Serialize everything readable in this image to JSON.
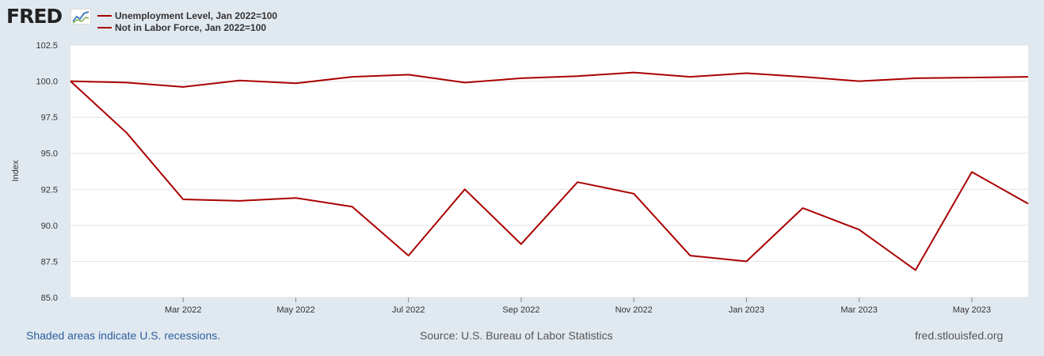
{
  "logo": {
    "text": "FRED",
    "icon": "line-chart-icon"
  },
  "legend": [
    {
      "label": "Unemployment Level, Jan 2022=100",
      "color": "#aa0000"
    },
    {
      "label": "Not in Labor Force, Jan 2022=100",
      "color": "#aa0000"
    }
  ],
  "chart_data": {
    "type": "line",
    "ylabel": "Index",
    "ylim": [
      85.0,
      102.5
    ],
    "yticks": [
      "85.0",
      "87.5",
      "90.0",
      "92.5",
      "95.0",
      "97.5",
      "100.0",
      "102.5"
    ],
    "x": [
      "Jan 2022",
      "Feb 2022",
      "Mar 2022",
      "Apr 2022",
      "May 2022",
      "Jun 2022",
      "Jul 2022",
      "Aug 2022",
      "Sep 2022",
      "Oct 2022",
      "Nov 2022",
      "Dec 2022",
      "Jan 2023",
      "Feb 2023",
      "Mar 2023",
      "Apr 2023",
      "May 2023",
      "Jun 2023"
    ],
    "xticks": [
      {
        "index": 2,
        "label": "Mar 2022"
      },
      {
        "index": 4,
        "label": "May 2022"
      },
      {
        "index": 6,
        "label": "Jul 2022"
      },
      {
        "index": 8,
        "label": "Sep 2022"
      },
      {
        "index": 10,
        "label": "Nov 2022"
      },
      {
        "index": 12,
        "label": "Jan 2023"
      },
      {
        "index": 14,
        "label": "Mar 2023"
      },
      {
        "index": 16,
        "label": "May 2023"
      }
    ],
    "series": [
      {
        "name": "Unemployment Level, Jan 2022=100",
        "color": "#aa0000",
        "values": [
          100.0,
          96.4,
          91.8,
          91.7,
          91.9,
          91.3,
          87.9,
          92.5,
          88.7,
          93.0,
          92.2,
          87.9,
          87.5,
          91.2,
          89.7,
          86.9,
          93.7,
          91.5
        ]
      },
      {
        "name": "Not in Labor Force, Jan 2022=100",
        "color": "#aa0000",
        "values": [
          100.0,
          99.9,
          99.6,
          100.05,
          99.85,
          100.3,
          100.45,
          99.9,
          100.2,
          100.35,
          100.6,
          100.3,
          100.55,
          100.3,
          100.0,
          100.2,
          100.25,
          100.3
        ]
      }
    ]
  },
  "footer": {
    "recessions": "Shaded areas indicate U.S. recessions.",
    "source": "Source: U.S. Bureau of Labor Statistics",
    "url": "fred.stlouisfed.org"
  }
}
